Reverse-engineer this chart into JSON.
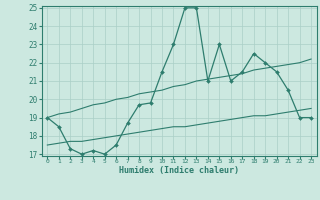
{
  "x": [
    0,
    1,
    2,
    3,
    4,
    5,
    6,
    7,
    8,
    9,
    10,
    11,
    12,
    13,
    14,
    15,
    16,
    17,
    18,
    19,
    20,
    21,
    22,
    23
  ],
  "y_main": [
    19.0,
    18.5,
    17.3,
    17.0,
    17.2,
    17.0,
    17.5,
    18.7,
    19.7,
    19.8,
    21.5,
    23.0,
    25.0,
    25.0,
    21.0,
    23.0,
    21.0,
    21.5,
    22.5,
    22.0,
    21.5,
    20.5,
    19.0,
    19.0
  ],
  "y_upper": [
    19.0,
    19.2,
    19.3,
    19.5,
    19.7,
    19.8,
    20.0,
    20.1,
    20.3,
    20.4,
    20.5,
    20.7,
    20.8,
    21.0,
    21.1,
    21.2,
    21.3,
    21.4,
    21.6,
    21.7,
    21.8,
    21.9,
    22.0,
    22.2
  ],
  "y_lower": [
    17.5,
    17.6,
    17.7,
    17.7,
    17.8,
    17.9,
    18.0,
    18.1,
    18.2,
    18.3,
    18.4,
    18.5,
    18.5,
    18.6,
    18.7,
    18.8,
    18.9,
    19.0,
    19.1,
    19.1,
    19.2,
    19.3,
    19.4,
    19.5
  ],
  "line_color": "#2e7d6e",
  "bg_color": "#cce8e0",
  "grid_color": "#aacfc7",
  "xlabel": "Humidex (Indice chaleur)",
  "ylim": [
    17,
    25
  ],
  "xlim": [
    -0.5,
    23.5
  ],
  "yticks": [
    17,
    18,
    19,
    20,
    21,
    22,
    23,
    24,
    25
  ],
  "xticks": [
    0,
    1,
    2,
    3,
    4,
    5,
    6,
    7,
    8,
    9,
    10,
    11,
    12,
    13,
    14,
    15,
    16,
    17,
    18,
    19,
    20,
    21,
    22,
    23
  ]
}
